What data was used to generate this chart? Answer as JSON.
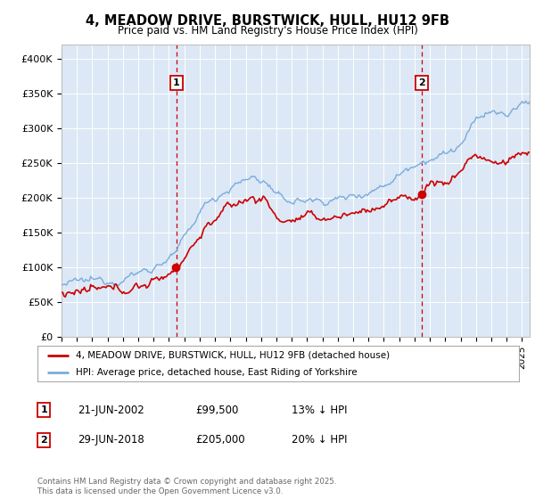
{
  "title": "4, MEADOW DRIVE, BURSTWICK, HULL, HU12 9FB",
  "subtitle": "Price paid vs. HM Land Registry's House Price Index (HPI)",
  "ylim": [
    0,
    420000
  ],
  "yticks": [
    0,
    50000,
    100000,
    150000,
    200000,
    250000,
    300000,
    350000,
    400000
  ],
  "ytick_labels": [
    "£0",
    "£50K",
    "£100K",
    "£150K",
    "£200K",
    "£250K",
    "£300K",
    "£350K",
    "£400K"
  ],
  "bg_color": "#dce8f5",
  "fig_color": "#ffffff",
  "grid_color": "#ffffff",
  "red_color": "#cc0000",
  "blue_color": "#7aabdb",
  "marker1_date_x": 2002.47,
  "marker1_price": 99500,
  "marker2_date_x": 2018.49,
  "marker2_price": 205000,
  "legend_red_label": "4, MEADOW DRIVE, BURSTWICK, HULL, HU12 9FB (detached house)",
  "legend_blue_label": "HPI: Average price, detached house, East Riding of Yorkshire",
  "ann1_date": "21-JUN-2002",
  "ann1_price": "£99,500",
  "ann1_pct": "13% ↓ HPI",
  "ann2_date": "29-JUN-2018",
  "ann2_price": "£205,000",
  "ann2_pct": "20% ↓ HPI",
  "footnote": "Contains HM Land Registry data © Crown copyright and database right 2025.\nThis data is licensed under the Open Government Licence v3.0.",
  "xmin": 1995.0,
  "xmax": 2025.5
}
